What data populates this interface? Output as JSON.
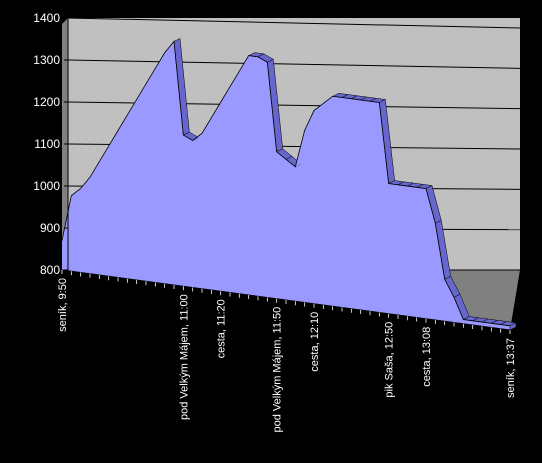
{
  "chart_data": {
    "type": "area",
    "title": "",
    "xlabel": "",
    "ylabel": "",
    "ylim": [
      800,
      1400
    ],
    "yticks": [
      800,
      900,
      1000,
      1100,
      1200,
      1300,
      1400
    ],
    "grid": true,
    "legend": "none",
    "colors": {
      "background": "#000000",
      "plot_back_wall": "#c0c0c0",
      "plot_floor": "#808080",
      "area_fill": "#9999ff",
      "area_side": "#6666cc",
      "edge": "#000000",
      "gridline": "#000000",
      "text": "#ffffff"
    },
    "x_labels": [
      {
        "index": 0,
        "text": "seník, 9:50"
      },
      {
        "index": 13,
        "text": "pod Velkým Májem, 11:00"
      },
      {
        "index": 17,
        "text": "cesta, 11:20"
      },
      {
        "index": 23,
        "text": "pod Velkým Májem, 11:50"
      },
      {
        "index": 27,
        "text": "cesta, 12:10"
      },
      {
        "index": 35,
        "text": "pik Saša, 12:50"
      },
      {
        "index": 39,
        "text": "cesta, 13:08"
      },
      {
        "index": 48,
        "text": "seník, 13:37"
      }
    ],
    "series": [
      {
        "values": [
          870,
          980,
          1000,
          1030,
          1070,
          1110,
          1150,
          1190,
          1230,
          1270,
          1310,
          1350,
          1380,
          1160,
          1150,
          1170,
          1210,
          1250,
          1290,
          1330,
          1370,
          1370,
          1360,
          1150,
          1135,
          1120,
          1210,
          1260,
          1280,
          1300,
          1300,
          1300,
          1300,
          1300,
          1300,
          1110,
          1110,
          1110,
          1110,
          1110,
          1030,
          900,
          860,
          810,
          810,
          810,
          810,
          810,
          810
        ]
      }
    ]
  }
}
